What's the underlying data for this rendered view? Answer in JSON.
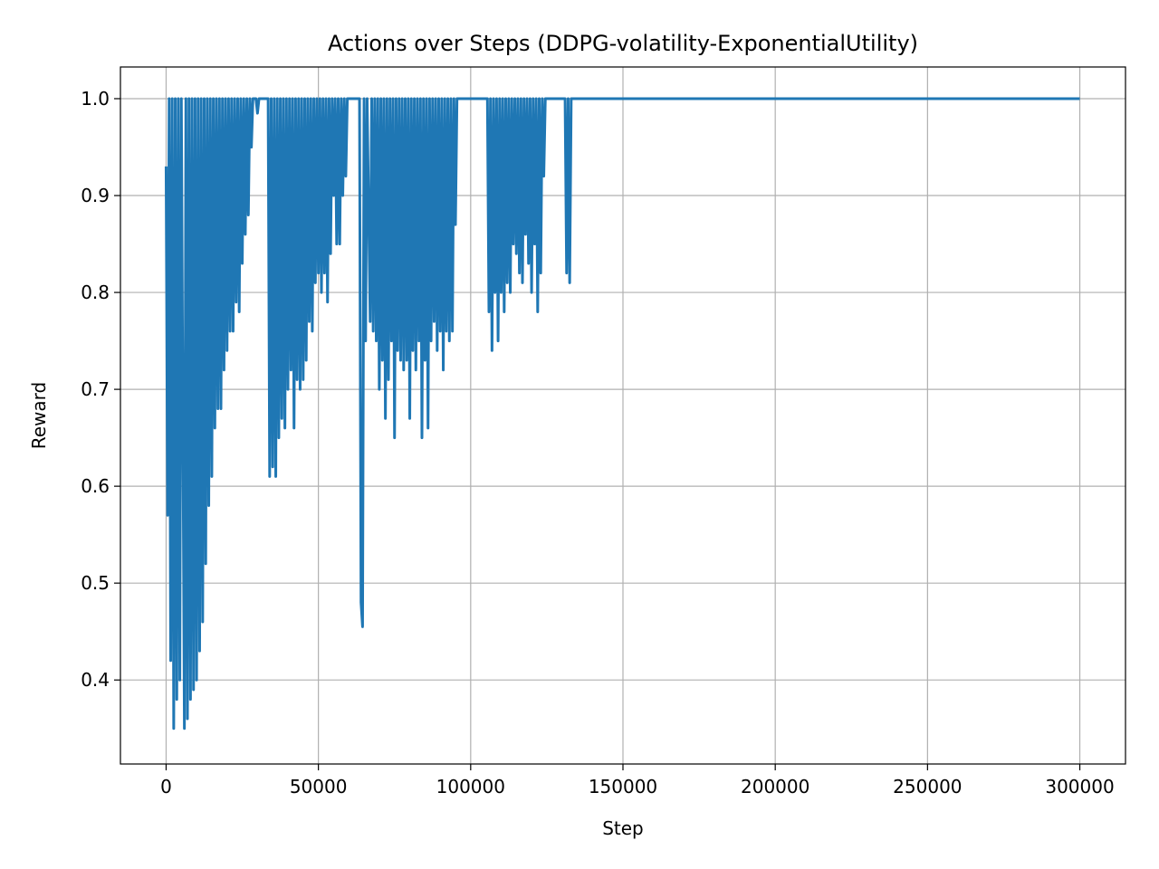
{
  "chart_data": {
    "type": "line",
    "title": "Actions over Steps (DDPG-volatility-ExponentialUtility)",
    "x_label": "Step",
    "y_label": "Reward",
    "xlim": [
      -15000,
      315000
    ],
    "ylim": [
      0.3133,
      1.0327
    ],
    "xticks": [
      0,
      50000,
      100000,
      150000,
      200000,
      250000,
      300000
    ],
    "yticks": [
      0.4,
      0.5,
      0.6,
      0.7,
      0.8,
      0.9,
      {
        "value": 1,
        "label": "1.0"
      }
    ],
    "grid": true,
    "color": "#1f77b4",
    "x": [
      0,
      500,
      1000,
      1500,
      2000,
      2500,
      3000,
      3500,
      4000,
      4500,
      5000,
      6000,
      6500,
      7000,
      7500,
      8000,
      8500,
      9000,
      9500,
      10000,
      10500,
      11000,
      11500,
      12000,
      12500,
      13000,
      13500,
      14000,
      14500,
      15000,
      15500,
      16000,
      16500,
      17000,
      17500,
      18000,
      18500,
      19000,
      19500,
      20000,
      20500,
      21000,
      21500,
      22000,
      22500,
      23000,
      23500,
      24000,
      24500,
      25000,
      25500,
      26000,
      26500,
      27000,
      27500,
      28000,
      28500,
      29500,
      30000,
      30500,
      33500,
      34000,
      34500,
      35000,
      35500,
      36000,
      36500,
      37000,
      37500,
      38000,
      38500,
      39000,
      39500,
      40000,
      40500,
      41000,
      41500,
      42000,
      42500,
      43000,
      43500,
      44000,
      44500,
      45000,
      45500,
      46000,
      46500,
      47000,
      47500,
      48000,
      48500,
      49000,
      49500,
      50000,
      50500,
      51000,
      51500,
      52000,
      52500,
      53000,
      53500,
      54000,
      54500,
      55000,
      55500,
      56000,
      56500,
      57000,
      57500,
      58000,
      58500,
      59000,
      59500,
      63500,
      64000,
      64500,
      65000,
      65500,
      66000,
      67000,
      67500,
      68000,
      68500,
      69000,
      69500,
      70000,
      70500,
      71000,
      71500,
      72000,
      72500,
      73000,
      73500,
      74000,
      74500,
      75000,
      75500,
      76000,
      76500,
      77000,
      77500,
      78000,
      78500,
      79000,
      79500,
      80000,
      80500,
      81000,
      81500,
      82000,
      82500,
      83000,
      83500,
      84000,
      84500,
      85000,
      85500,
      86000,
      86500,
      87000,
      87500,
      88000,
      88500,
      89000,
      89500,
      90000,
      90500,
      91000,
      91500,
      92000,
      92500,
      93000,
      93500,
      94000,
      94500,
      95000,
      95500,
      105500,
      106000,
      106500,
      107000,
      107500,
      108000,
      108500,
      109000,
      109500,
      110000,
      110500,
      111000,
      111500,
      112000,
      112500,
      113000,
      113500,
      114000,
      114500,
      115000,
      115500,
      116000,
      116500,
      117000,
      117500,
      118000,
      118500,
      119000,
      119500,
      120000,
      120500,
      121000,
      121500,
      122000,
      122500,
      123000,
      123500,
      124000,
      124500,
      131000,
      131500,
      132000,
      132500,
      133000,
      300000
    ],
    "values": [
      0.93,
      0.57,
      1,
      0.42,
      1,
      0.35,
      1,
      0.38,
      1,
      0.4,
      1,
      0.35,
      1,
      0.36,
      1,
      0.38,
      1,
      0.39,
      1,
      0.4,
      1,
      0.43,
      1,
      0.46,
      1,
      0.52,
      1,
      0.58,
      1,
      0.61,
      1,
      0.66,
      1,
      0.68,
      1,
      0.68,
      1,
      0.72,
      1,
      0.74,
      1,
      0.76,
      1,
      0.76,
      1,
      0.79,
      1,
      0.78,
      1,
      0.83,
      1,
      0.86,
      1,
      0.88,
      1,
      0.95,
      1,
      1,
      0.985,
      1,
      1,
      0.61,
      1,
      0.62,
      1,
      0.61,
      1,
      0.65,
      1,
      0.67,
      1,
      0.66,
      1,
      0.7,
      1,
      0.72,
      1,
      0.66,
      1,
      0.71,
      1,
      0.7,
      1,
      0.71,
      1,
      0.73,
      1,
      0.77,
      1,
      0.76,
      1,
      0.81,
      1,
      0.82,
      1,
      0.8,
      1,
      0.82,
      1,
      0.79,
      1,
      0.84,
      1,
      0.9,
      1,
      0.85,
      1,
      0.85,
      1,
      0.9,
      1,
      0.92,
      1,
      1,
      0.48,
      0.455,
      1,
      0.75,
      1,
      0.77,
      1,
      0.76,
      1,
      0.75,
      1,
      0.7,
      1,
      0.73,
      1,
      0.67,
      1,
      0.71,
      1,
      0.75,
      1,
      0.65,
      1,
      0.74,
      1,
      0.73,
      1,
      0.72,
      1,
      0.73,
      1,
      0.67,
      1,
      0.74,
      1,
      0.72,
      1,
      0.75,
      1,
      0.65,
      1,
      0.73,
      1,
      0.66,
      1,
      0.75,
      1,
      0.77,
      1,
      0.74,
      1,
      0.76,
      1,
      0.72,
      1,
      0.76,
      1,
      0.75,
      1,
      0.76,
      1,
      0.87,
      1,
      1,
      0.78,
      1,
      0.74,
      1,
      0.8,
      1,
      0.75,
      1,
      0.8,
      1,
      0.78,
      1,
      0.81,
      1,
      0.8,
      1,
      0.85,
      1,
      0.84,
      1,
      0.82,
      1,
      0.81,
      1,
      0.86,
      1,
      0.83,
      1,
      0.8,
      1,
      0.85,
      1,
      0.78,
      1,
      0.82,
      1,
      0.92,
      1,
      1,
      0.82,
      1,
      0.81,
      1,
      1
    ]
  }
}
